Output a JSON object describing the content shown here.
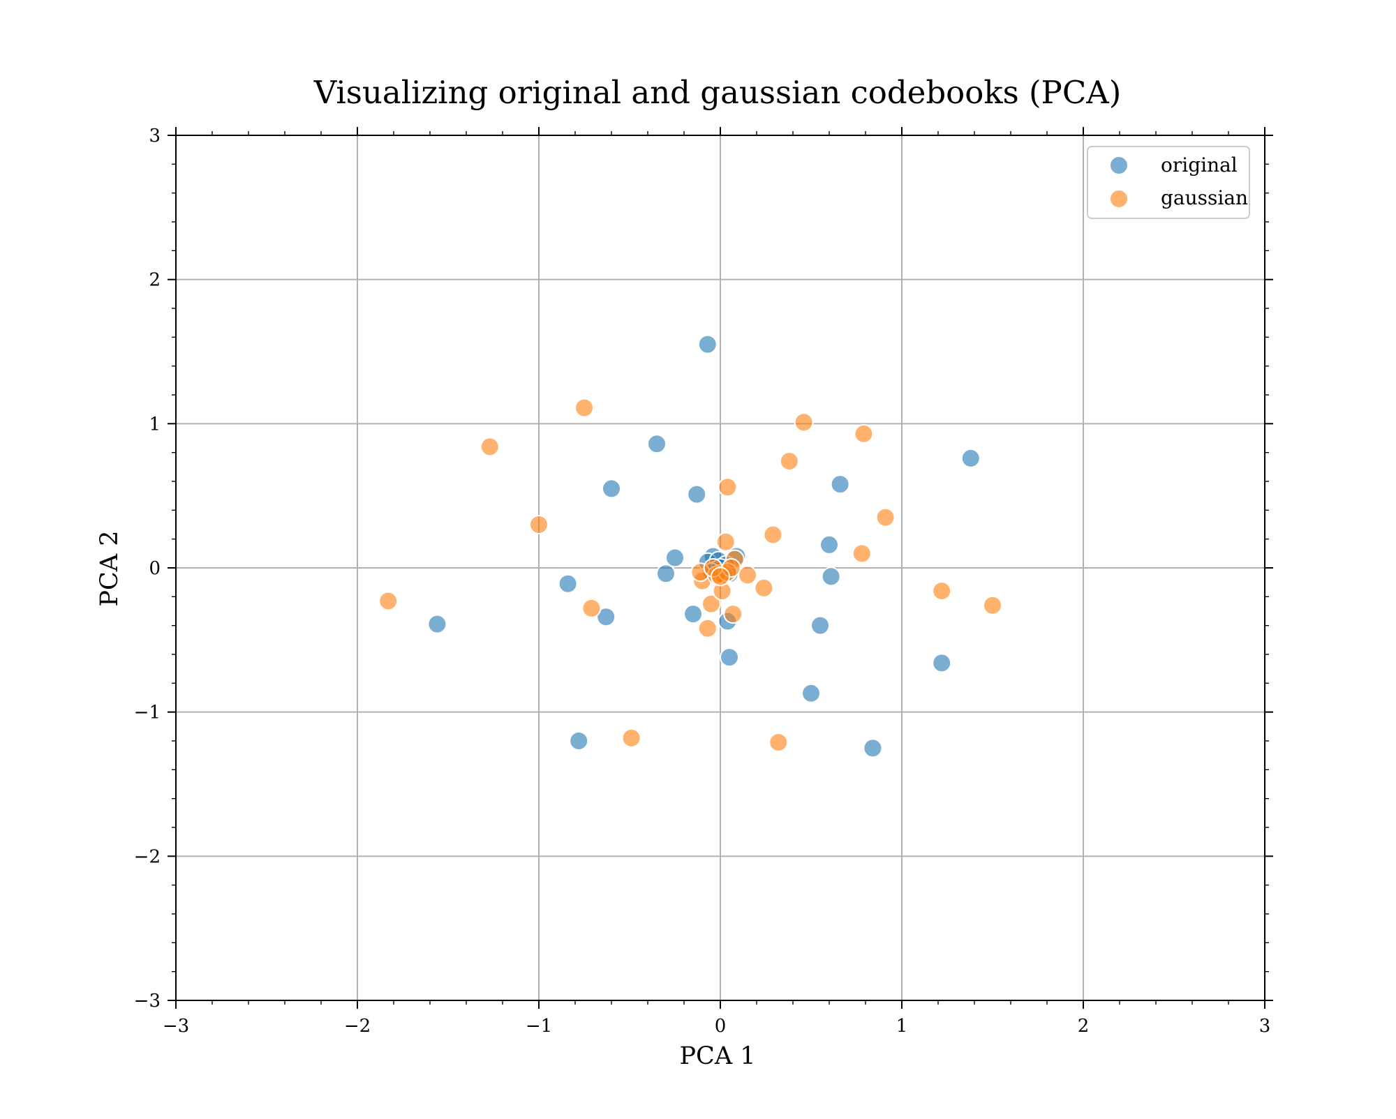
{
  "chart_data": {
    "type": "scatter",
    "title": "Visualizing original and gaussian codebooks (PCA)",
    "xlabel": "PCA 1",
    "ylabel": "PCA 2",
    "xlim": [
      -3,
      3
    ],
    "ylim": [
      -3,
      3
    ],
    "xticks": [
      -3,
      -2,
      -1,
      0,
      1,
      2,
      3
    ],
    "yticks": [
      -3,
      -2,
      -1,
      0,
      1,
      2,
      3
    ],
    "xtick_labels": [
      "−3",
      "−2",
      "−1",
      "0",
      "1",
      "2",
      "3"
    ],
    "ytick_labels": [
      "−3",
      "−2",
      "−1",
      "0",
      "1",
      "2",
      "3"
    ],
    "grid": true,
    "legend_position": "top-right",
    "series": [
      {
        "name": "original",
        "color": "#1f77b4",
        "points": [
          [
            -0.07,
            1.55
          ],
          [
            -0.35,
            0.86
          ],
          [
            -0.6,
            0.55
          ],
          [
            -0.13,
            0.51
          ],
          [
            0.66,
            0.58
          ],
          [
            1.38,
            0.76
          ],
          [
            0.6,
            0.16
          ],
          [
            0.61,
            -0.06
          ],
          [
            -0.25,
            0.07
          ],
          [
            -0.3,
            -0.04
          ],
          [
            -0.84,
            -0.11
          ],
          [
            -1.56,
            -0.39
          ],
          [
            -0.63,
            -0.34
          ],
          [
            -0.15,
            -0.32
          ],
          [
            0.04,
            -0.37
          ],
          [
            0.55,
            -0.4
          ],
          [
            0.05,
            -0.62
          ],
          [
            1.22,
            -0.66
          ],
          [
            0.5,
            -0.87
          ],
          [
            -0.78,
            -1.2
          ],
          [
            0.84,
            -1.25
          ],
          [
            -0.04,
            0.08
          ],
          [
            0.09,
            0.08
          ],
          [
            -0.07,
            0.04
          ],
          [
            -0.01,
            0.05
          ],
          [
            0.03,
            0.02
          ],
          [
            -0.03,
            -0.02
          ],
          [
            0.0,
            0.0
          ],
          [
            0.05,
            -0.04
          ],
          [
            -0.05,
            -0.03
          ]
        ]
      },
      {
        "name": "gaussian",
        "color": "#ff7f0e",
        "points": [
          [
            -0.75,
            1.11
          ],
          [
            -1.27,
            0.84
          ],
          [
            0.46,
            1.01
          ],
          [
            0.79,
            0.93
          ],
          [
            0.38,
            0.74
          ],
          [
            0.04,
            0.56
          ],
          [
            -1.0,
            0.3
          ],
          [
            0.91,
            0.35
          ],
          [
            0.29,
            0.23
          ],
          [
            0.78,
            0.1
          ],
          [
            0.03,
            0.18
          ],
          [
            0.08,
            0.06
          ],
          [
            1.22,
            -0.16
          ],
          [
            1.5,
            -0.26
          ],
          [
            -1.83,
            -0.23
          ],
          [
            -0.71,
            -0.28
          ],
          [
            -0.05,
            -0.25
          ],
          [
            0.07,
            -0.32
          ],
          [
            -0.07,
            -0.42
          ],
          [
            0.15,
            -0.05
          ],
          [
            0.24,
            -0.14
          ],
          [
            0.01,
            -0.16
          ],
          [
            -0.1,
            -0.09
          ],
          [
            -0.11,
            -0.03
          ],
          [
            -0.49,
            -1.18
          ],
          [
            0.32,
            -1.21
          ],
          [
            0.0,
            -0.04
          ],
          [
            0.02,
            -0.05
          ],
          [
            -0.02,
            -0.05
          ],
          [
            0.04,
            -0.03
          ],
          [
            -0.04,
            0.0
          ],
          [
            0.06,
            0.0
          ],
          [
            0.0,
            -0.06
          ]
        ]
      }
    ]
  }
}
